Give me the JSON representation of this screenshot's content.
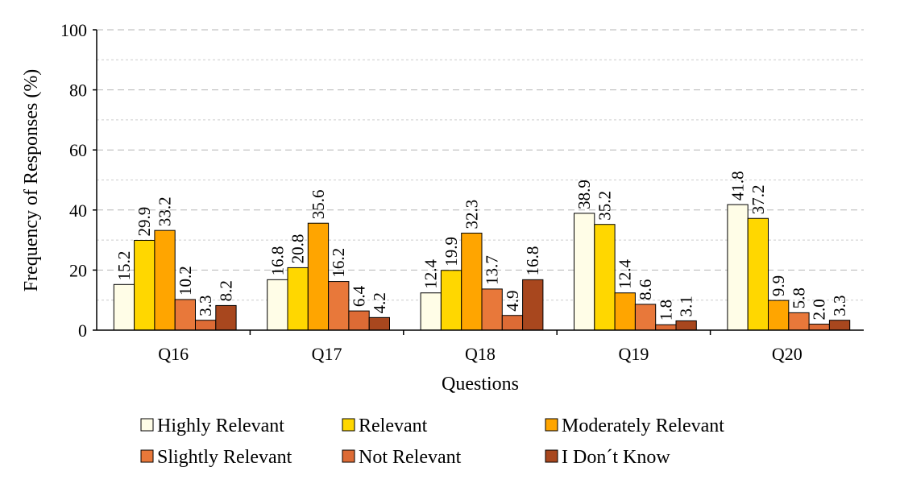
{
  "chart_data": {
    "type": "bar",
    "title": "",
    "xlabel": "Questions",
    "ylabel": "Frequency of Responses (%)",
    "ylim": [
      0,
      100
    ],
    "yticks": [
      "0",
      "20",
      "40",
      "60",
      "80",
      "100"
    ],
    "grid": true,
    "legend_position": "bottom",
    "categories": [
      "Q16",
      "Q17",
      "Q18",
      "Q19",
      "Q20"
    ],
    "series": [
      {
        "name": "Highly Relevant",
        "color": "#FFFDE7",
        "values": [
          15.2,
          16.8,
          12.4,
          38.9,
          41.8
        ],
        "labels": [
          "15.2",
          "16.8",
          "12.4",
          "38.9",
          "41.8"
        ]
      },
      {
        "name": "Relevant",
        "color": "#FFD700",
        "values": [
          29.9,
          20.8,
          19.9,
          35.2,
          37.2
        ],
        "labels": [
          "29.9",
          "20.8",
          "19.9",
          "35.2",
          "37.2"
        ]
      },
      {
        "name": "Moderately Relevant",
        "color": "#FFA500",
        "values": [
          33.2,
          35.6,
          32.3,
          12.4,
          9.9
        ],
        "labels": [
          "33.2",
          "35.6",
          "32.3",
          "12.4",
          "9.9"
        ]
      },
      {
        "name": "Slightly Relevant",
        "color": "#E8783A",
        "values": [
          10.2,
          16.2,
          13.7,
          8.6,
          5.8
        ],
        "labels": [
          "10.2",
          "16.2",
          "13.7",
          "8.6",
          "5.8"
        ]
      },
      {
        "name": "Not Relevant",
        "color": "#DD6B35",
        "values": [
          3.3,
          6.4,
          4.9,
          1.8,
          2.0
        ],
        "labels": [
          "3.3",
          "6.4",
          "4.9",
          "1.8",
          "2.0"
        ]
      },
      {
        "name": "I Don´t Know",
        "color": "#A8471E",
        "values": [
          8.2,
          4.2,
          16.8,
          3.1,
          3.3
        ],
        "labels": [
          "8.2",
          "4.2",
          "16.8",
          "3.1",
          "3.3"
        ]
      }
    ]
  }
}
